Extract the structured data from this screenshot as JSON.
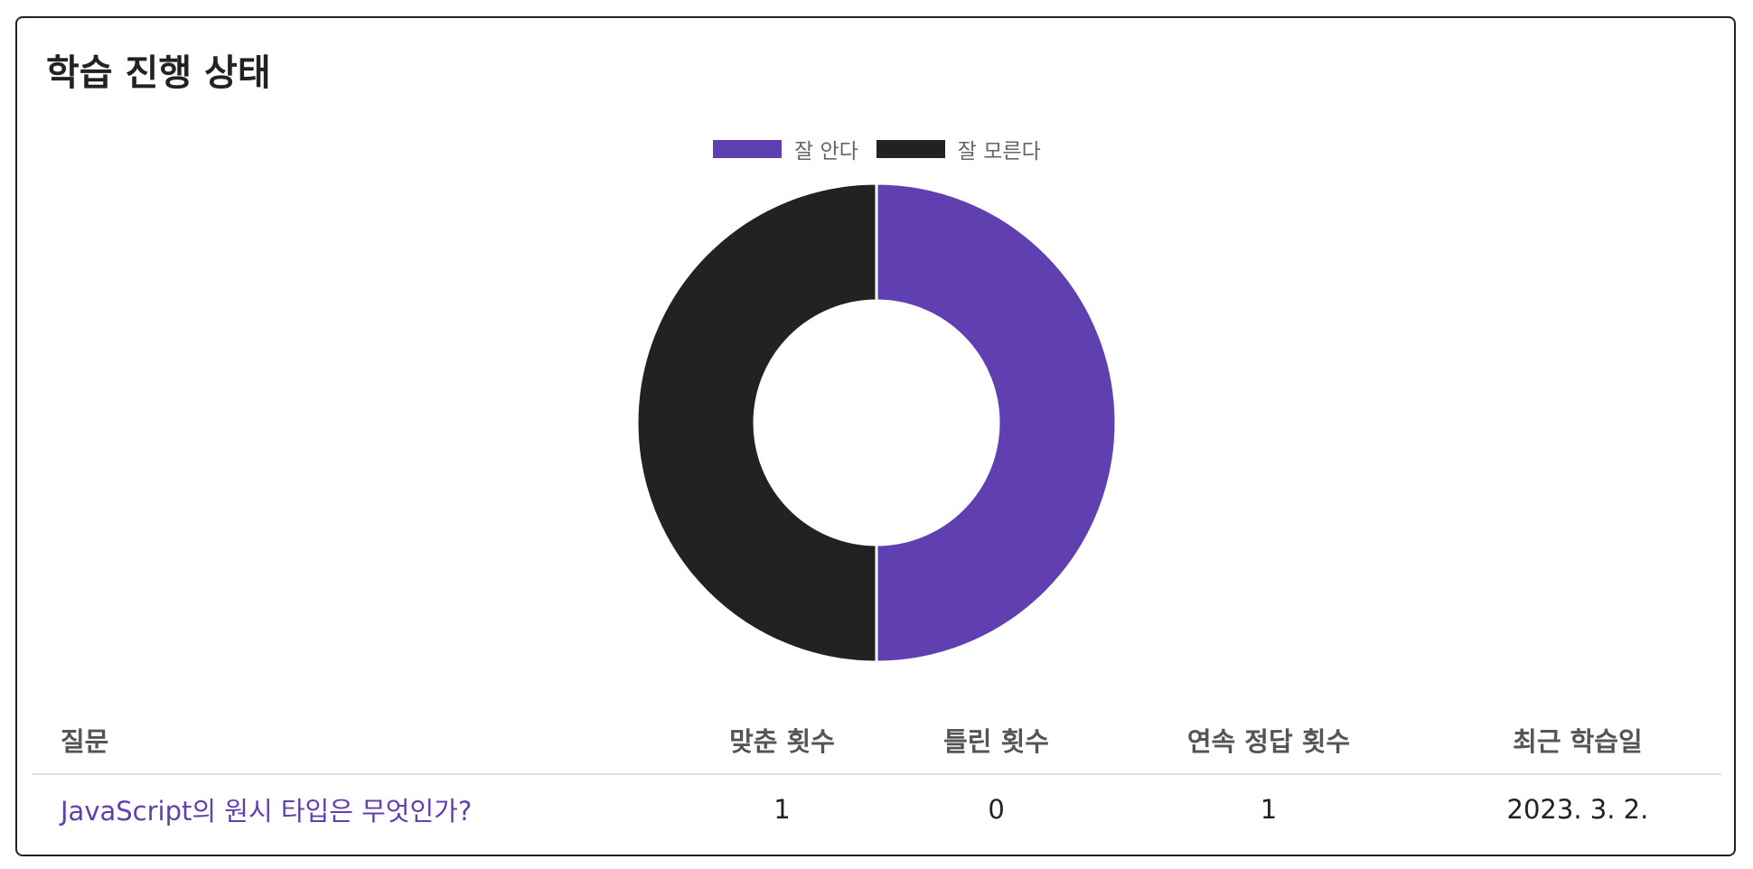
{
  "panel": {
    "title": "학습 진행 상태"
  },
  "chart_data": {
    "type": "pie",
    "variant": "doughnut",
    "legend_position": "top",
    "series": [
      {
        "name": "잘 안다",
        "value": 1,
        "color": "#6040b0"
      },
      {
        "name": "잘 모른다",
        "value": 1,
        "color": "#222222"
      }
    ]
  },
  "table": {
    "headers": [
      "질문",
      "맞춘 횟수",
      "틀린 횟수",
      "연속 정답 횟수",
      "최근 학습일"
    ],
    "rows": [
      {
        "question": "JavaScript의 원시 타입은 무엇인가?",
        "correct": "1",
        "wrong": "0",
        "streak": "1",
        "last_studied": "2023. 3. 2."
      }
    ]
  },
  "colors": {
    "accent": "#6040b0",
    "dark": "#222222",
    "border": "#222222"
  }
}
